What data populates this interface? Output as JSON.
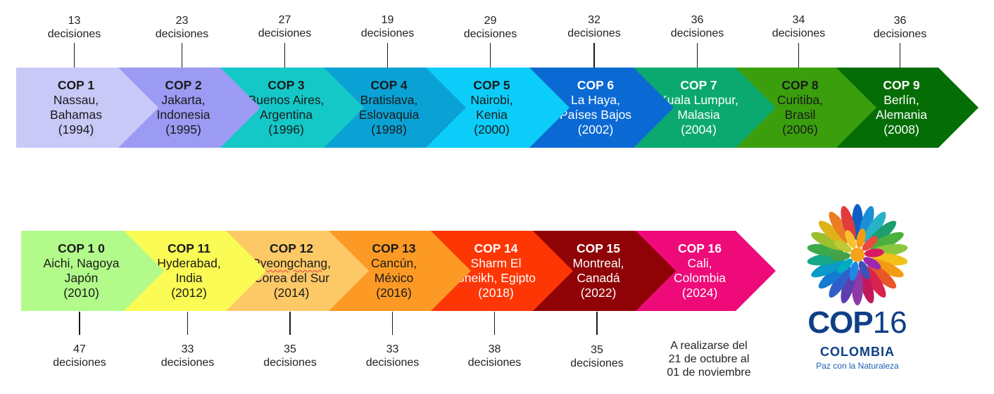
{
  "row1": [
    {
      "title": "COP 1",
      "lines": [
        "Nassau,",
        "Bahamas",
        "(1994)"
      ],
      "decisions": "13",
      "decisions_label": "decisiones",
      "color": "#c9c9f8",
      "text": "dark"
    },
    {
      "title": "COP 2",
      "lines": [
        "Jakarta,",
        "Indonesia",
        "(1995)"
      ],
      "decisions": "23",
      "decisions_label": "decisiones",
      "color": "#9b9bf4",
      "text": "dark"
    },
    {
      "title": "COP 3",
      "lines": [
        "Buenos Aires,",
        "Argentina",
        "(1996)"
      ],
      "decisions": "27",
      "decisions_label": "decisiones",
      "color": "#14c8c8",
      "text": "dark"
    },
    {
      "title": "COP 4",
      "lines": [
        "Bratislava,",
        "Eslovaquia",
        "(1998)"
      ],
      "decisions": "19",
      "decisions_label": "decisiones",
      "color": "#0aa2d4",
      "text": "dark"
    },
    {
      "title": "COP 5",
      "lines": [
        "Nairobi,",
        "Kenia",
        "(2000)"
      ],
      "decisions": "29",
      "decisions_label": "decisiones",
      "color": "#0ccdf9",
      "text": "dark"
    },
    {
      "title": "COP 6",
      "lines": [
        "La Haya,",
        "Países Bajos",
        "(2002)"
      ],
      "decisions": "32",
      "decisions_label": "decisiones",
      "color": "#0b69d3",
      "text": "light"
    },
    {
      "title": "COP 7",
      "lines": [
        "Kuala Lumpur,",
        "Malasia",
        "(2004)"
      ],
      "decisions": "36",
      "decisions_label": "decisiones",
      "color": "#0ba86f",
      "text": "light"
    },
    {
      "title": "COP 8",
      "lines": [
        "Curitiba,",
        "Brasil",
        "(2006)"
      ],
      "decisions": "34",
      "decisions_label": "decisiones",
      "color": "#3a9e0d",
      "text": "dark"
    },
    {
      "title": "COP 9",
      "lines": [
        "Berlín,",
        "Alemania",
        "(2008)"
      ],
      "decisions": "36",
      "decisions_label": "decisiones",
      "color": "#056d06",
      "text": "light"
    }
  ],
  "row2": [
    {
      "title": "COP 1 0",
      "lines": [
        "Aichi, Nagoya",
        "Japón",
        "(2010)"
      ],
      "decisions": "47",
      "decisions_label": "decisiones",
      "color": "#b2fb8a",
      "text": "dark"
    },
    {
      "title": "COP 11",
      "lines": [
        "Hyderabad,",
        "India",
        "(2012)"
      ],
      "decisions": "33",
      "decisions_label": "decisiones",
      "color": "#fbfb55",
      "text": "dark"
    },
    {
      "title": "COP 12",
      "lines": [
        "Pyeongchang,",
        "Corea del Sur",
        "(2014)"
      ],
      "decisions": "35",
      "decisions_label": "decisiones",
      "color": "#fdc966",
      "text": "dark"
    },
    {
      "title": "COP 13",
      "lines": [
        "Cancún,",
        "México",
        "(2016)"
      ],
      "decisions": "33",
      "decisions_label": "decisiones",
      "color": "#fd9a25",
      "text": "dark"
    },
    {
      "title": "COP 14",
      "lines": [
        "Sharm El",
        "Sheikh, Egipto",
        "(2018)"
      ],
      "decisions": "38",
      "decisions_label": "decisiones",
      "color": "#fd3604",
      "text": "light"
    },
    {
      "title": "COP 15",
      "lines": [
        "Montreal,",
        "Canadá",
        "(2022)"
      ],
      "decisions": "35",
      "decisions_label": "decisiones",
      "color": "#8f0206",
      "text": "light"
    },
    {
      "title": "COP 16",
      "lines": [
        "Cali,",
        "Colombia",
        "(2024)"
      ],
      "decisions": "",
      "decisions_label": "",
      "color": "#ee0a78",
      "text": "light"
    }
  ],
  "cop16_note": [
    "A realizarse del",
    "21 de octubre al",
    "01 de noviembre"
  ],
  "logo": {
    "main": "COP",
    "number": "16",
    "country": "COLOMBIA",
    "slogan": "Paz con la Naturaleza"
  }
}
